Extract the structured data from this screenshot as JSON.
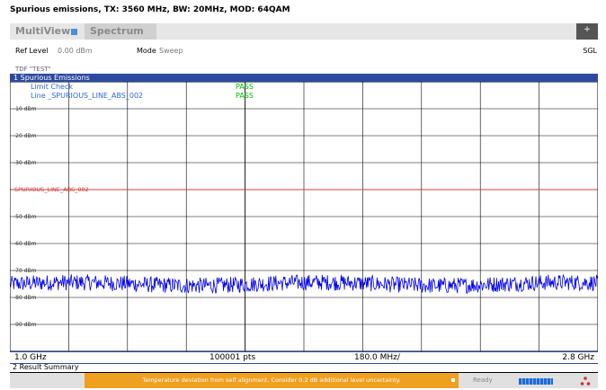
{
  "caption": "Spurious emissions, TX: 3560 MHz, BW: 20MHz, MOD: 64QAM",
  "tabs": [
    {
      "label": "MultiView"
    },
    {
      "label": "Spectrum"
    }
  ],
  "toolbar": {
    "plus_label": "+",
    "sgl_label": "SGL"
  },
  "settings": {
    "ref_level_label": "Ref Level",
    "ref_level_value": "0.00 dBm",
    "mode_label": "Mode",
    "mode_value": "Sweep",
    "tdf": "TDF \"TEST\""
  },
  "window": {
    "title": "1 Spurious Emissions",
    "limit_check_label": "Limit Check",
    "limit_check_result": "PASS",
    "line_label": "Line _SPURIOUS_LINE_ABS_002",
    "line_result": "PASS",
    "limit_line_name": "SPURIOUS_LINE_ABS_002"
  },
  "chart_data": {
    "type": "line",
    "y_tick_labels": [
      "-10 dBm",
      "-20 dBm",
      "-30 dBm",
      "-40 dBm",
      "-50 dBm",
      "-60 dBm",
      "-70 dBm",
      "-80 dBm",
      "-90 dBm"
    ],
    "yticks": [
      -10,
      -20,
      -30,
      -40,
      -50,
      -60,
      -70,
      -80,
      -90
    ],
    "ylim": [
      -100,
      0
    ],
    "xlim": [
      1.0,
      2.8
    ],
    "limit_line": {
      "name": "SPURIOUS_LINE_ABS_002",
      "value": -40
    },
    "trace": {
      "color": "#0000ee",
      "noise_floor_dbm": -75,
      "spread_db": 3
    },
    "grid": true
  },
  "freq_axis": {
    "start": "1.0 GHz",
    "points": "100001 pts",
    "span_per_div": "180.0 MHz/",
    "stop": "2.8 GHz"
  },
  "result_summary": {
    "title": "2 Result Summary"
  },
  "status": {
    "message": "Temperature deviation from self alignment. Consider 0.2 dB additional level uncertainty.",
    "ready": "Ready"
  },
  "colors": {
    "window_title": "#2d4aa0",
    "trace": "#0000ee",
    "limit_line": "#d04040",
    "pass": "#00bb00",
    "status_warning": "#f0a020"
  }
}
